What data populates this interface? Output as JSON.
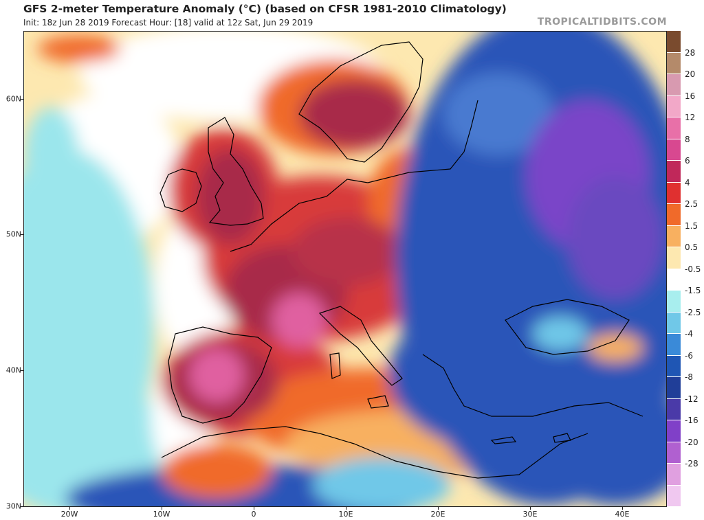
{
  "header": {
    "title": "GFS 2-meter Temperature Anomaly (°C) (based on CFSR 1981-2010 Climatology)",
    "subtitle": "Init: 18z Jun 28 2019   Forecast Hour: [18]   valid at 12z Sat, Jun 29 2019",
    "brand": "TROPICALTIDBITS.COM"
  },
  "axes": {
    "latitudes": [
      "60N",
      "50N",
      "40N",
      "30N"
    ],
    "longitudes": [
      "20W",
      "10W",
      "0",
      "10E",
      "20E",
      "30E",
      "40E"
    ]
  },
  "legend": {
    "labels": [
      "28",
      "20",
      "16",
      "12",
      "8",
      "6",
      "4",
      "2.5",
      "1.5",
      "0.5",
      "-0.5",
      "-1.5",
      "-2.5",
      "-4",
      "-6",
      "-8",
      "-12",
      "-16",
      "-20",
      "-28"
    ],
    "colors": [
      "#7a4b2e",
      "#b48a6a",
      "#d89ab0",
      "#f2a8c8",
      "#e870a8",
      "#d84890",
      "#c0285a",
      "#e03030",
      "#f06a2a",
      "#f8b060",
      "#fde8b0",
      "#ffffff",
      "#a8eeee",
      "#70c8e8",
      "#3a8ad8",
      "#1f56b4",
      "#203e98",
      "#4a3aa8",
      "#8040c8",
      "#b060d0",
      "#e0a0e0",
      "#f0c8f0"
    ]
  },
  "map": {
    "colors": {
      "ocean_neutral": "#fde8b0",
      "ocean_cool": "#9be6ec",
      "very_warm": "#a82a48",
      "warm": "#d83a3a",
      "mild_warm": "#f06a2a",
      "cold": "#2a55b8",
      "very_cold": "#7a45c8",
      "coast": "#000000"
    }
  }
}
